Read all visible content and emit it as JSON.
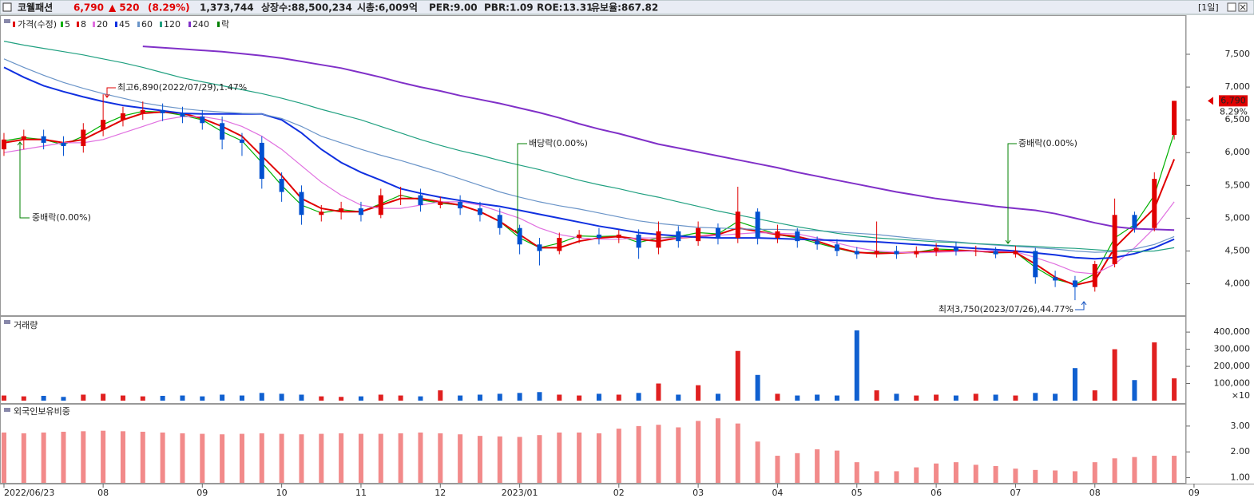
{
  "header": {
    "name": "코웰패션",
    "price": "6,790",
    "change": "▲ 520",
    "change_pct": "(8.29%)",
    "volume": "1,373,744",
    "listed": "상장수:88,500,234",
    "cap": "시총:6,009억",
    "per": "PER:9.00",
    "pbr": "PBR:1.09",
    "roe": "ROE:13.31",
    "reserve": "유보율:867.82",
    "period": "[1일]",
    "pct_marker": "8.29%"
  },
  "chart_data": [
    {
      "type": "candlestick",
      "name": "가격(수정)",
      "up_color": "#e00000",
      "down_color": "#0050d0",
      "x": [
        0,
        1,
        2,
        3,
        4,
        5,
        6,
        7,
        8,
        9,
        10,
        11,
        12,
        13,
        14,
        15,
        16,
        17,
        18,
        19,
        20,
        21,
        22,
        23,
        24,
        25,
        26,
        27,
        28,
        29,
        30,
        31,
        32,
        33,
        34,
        35,
        36,
        37,
        38,
        39,
        40,
        41,
        42,
        43,
        44,
        45,
        46,
        47,
        48,
        49,
        50,
        51,
        52,
        53,
        54,
        55,
        56,
        57,
        58,
        59
      ],
      "xlim": [
        -0.2,
        59.6
      ],
      "xticks": [
        {
          "value": 0,
          "label": "2022/06/23"
        },
        {
          "value": 5,
          "label": "08"
        },
        {
          "value": 10,
          "label": "09"
        },
        {
          "value": 14,
          "label": "10"
        },
        {
          "value": 18,
          "label": "11"
        },
        {
          "value": 22,
          "label": "12"
        },
        {
          "value": 26,
          "label": "2023/01"
        },
        {
          "value": 31,
          "label": "02"
        },
        {
          "value": 35,
          "label": "03"
        },
        {
          "value": 39,
          "label": "04"
        },
        {
          "value": 43,
          "label": "05"
        },
        {
          "value": 47,
          "label": "06"
        },
        {
          "value": 51,
          "label": "07"
        },
        {
          "value": 55,
          "label": "08"
        },
        {
          "value": 60,
          "label": "09"
        }
      ],
      "open": [
        6050,
        6200,
        6250,
        6150,
        6100,
        6350,
        6500,
        6600,
        6650,
        6600,
        6550,
        6450,
        6200,
        6150,
        5600,
        5400,
        5050,
        5100,
        5150,
        5050,
        5350,
        5350,
        5200,
        5250,
        5150,
        5050,
        4850,
        4600,
        4500,
        4700,
        4750,
        4700,
        4750,
        4550,
        4800,
        4650,
        4850,
        4700,
        5100,
        4700,
        4800,
        4650,
        4600,
        4500,
        4450,
        4500,
        4450,
        4500,
        4550,
        4500,
        4500,
        4450,
        4500,
        4100,
        4050,
        3950,
        4300,
        5050,
        4850,
        6270
      ],
      "high": [
        6300,
        6350,
        6350,
        6250,
        6450,
        6890,
        6700,
        6780,
        6750,
        6700,
        6650,
        6550,
        6300,
        6250,
        5700,
        5500,
        5200,
        5250,
        5250,
        5450,
        5480,
        5450,
        5330,
        5350,
        5250,
        5150,
        4900,
        4700,
        4780,
        4820,
        4850,
        4820,
        4830,
        4950,
        4880,
        4950,
        4920,
        5480,
        5150,
        4900,
        4850,
        4720,
        4680,
        4560,
        4950,
        4580,
        4570,
        4620,
        4640,
        4580,
        4560,
        4580,
        4550,
        4200,
        4120,
        4350,
        5300,
        5100,
        5700,
        6790
      ],
      "low": [
        5950,
        6050,
        6050,
        5950,
        6000,
        6250,
        6400,
        6500,
        6480,
        6450,
        6350,
        6050,
        5950,
        5450,
        5250,
        4900,
        4950,
        4980,
        4950,
        5000,
        5200,
        5100,
        5150,
        5050,
        4950,
        4750,
        4450,
        4280,
        4450,
        4620,
        4600,
        4620,
        4380,
        4450,
        4550,
        4580,
        4600,
        4620,
        4600,
        4620,
        4550,
        4520,
        4420,
        4380,
        4400,
        4380,
        4400,
        4420,
        4430,
        4420,
        4390,
        4400,
        4000,
        3950,
        3750,
        3880,
        4250,
        4780,
        4800,
        6200
      ],
      "close": [
        6200,
        6250,
        6150,
        6100,
        6350,
        6500,
        6600,
        6650,
        6600,
        6550,
        6450,
        6200,
        6150,
        5600,
        5400,
        5050,
        5100,
        5150,
        5050,
        5350,
        5350,
        5200,
        5250,
        5150,
        5050,
        4850,
        4600,
        4500,
        4700,
        4750,
        4700,
        4750,
        4550,
        4800,
        4650,
        4850,
        4700,
        5100,
        4700,
        4800,
        4650,
        4600,
        4500,
        4450,
        4500,
        4450,
        4500,
        4550,
        4500,
        4500,
        4450,
        4500,
        4100,
        4050,
        3950,
        4300,
        5050,
        4850,
        5600,
        6790
      ],
      "series": [
        {
          "name": "5",
          "color": "#00b000",
          "values": [
            6180,
            6230,
            6200,
            6120,
            6250,
            6430,
            6560,
            6630,
            6620,
            6570,
            6500,
            6320,
            6180,
            5850,
            5500,
            5200,
            5080,
            5130,
            5100,
            5220,
            5350,
            5280,
            5230,
            5200,
            5100,
            4950,
            4700,
            4550,
            4620,
            4730,
            4720,
            4730,
            4630,
            4700,
            4720,
            4780,
            4760,
            4950,
            4850,
            4750,
            4700,
            4620,
            4540,
            4470,
            4480,
            4470,
            4480,
            4530,
            4520,
            4500,
            4470,
            4480,
            4250,
            4070,
            3990,
            4150,
            4700,
            4900,
            5350,
            6300
          ]
        },
        {
          "name": "8",
          "color": "#e00000",
          "values": [
            6150,
            6200,
            6200,
            6150,
            6200,
            6350,
            6500,
            6600,
            6620,
            6600,
            6520,
            6400,
            6250,
            5950,
            5650,
            5300,
            5150,
            5100,
            5100,
            5200,
            5300,
            5300,
            5250,
            5200,
            5100,
            4950,
            4750,
            4550,
            4550,
            4650,
            4700,
            4720,
            4680,
            4650,
            4700,
            4720,
            4750,
            4850,
            4800,
            4750,
            4720,
            4650,
            4550,
            4480,
            4460,
            4470,
            4480,
            4500,
            4510,
            4500,
            4480,
            4480,
            4300,
            4100,
            3980,
            4050,
            4550,
            4850,
            5150,
            5900
          ]
        },
        {
          "name": "20",
          "color": "#e070e0",
          "values": [
            6000,
            6050,
            6100,
            6150,
            6150,
            6200,
            6300,
            6400,
            6500,
            6550,
            6550,
            6500,
            6400,
            6250,
            6050,
            5800,
            5550,
            5350,
            5200,
            5150,
            5150,
            5200,
            5250,
            5250,
            5200,
            5100,
            5000,
            4850,
            4750,
            4700,
            4680,
            4680,
            4700,
            4700,
            4700,
            4720,
            4740,
            4760,
            4780,
            4770,
            4760,
            4700,
            4620,
            4550,
            4500,
            4480,
            4470,
            4480,
            4490,
            4500,
            4500,
            4490,
            4400,
            4300,
            4180,
            4150,
            4300,
            4550,
            4850,
            5250
          ]
        },
        {
          "name": "45",
          "color": "#1030e0",
          "values": [
            7300,
            7150,
            7020,
            6930,
            6850,
            6780,
            6720,
            6680,
            6640,
            6600,
            6590,
            6590,
            6590,
            6590,
            6500,
            6300,
            6050,
            5850,
            5700,
            5580,
            5450,
            5380,
            5320,
            5270,
            5220,
            5180,
            5120,
            5060,
            5000,
            4940,
            4880,
            4830,
            4780,
            4750,
            4730,
            4710,
            4700,
            4700,
            4700,
            4690,
            4680,
            4670,
            4660,
            4650,
            4640,
            4620,
            4600,
            4580,
            4560,
            4540,
            4520,
            4500,
            4470,
            4440,
            4400,
            4380,
            4400,
            4460,
            4550,
            4680
          ]
        },
        {
          "name": "60",
          "color": "#6a94c8",
          "values": [
            7430,
            7300,
            7180,
            7070,
            6980,
            6900,
            6830,
            6760,
            6710,
            6670,
            6640,
            6620,
            6600,
            6590,
            6520,
            6400,
            6250,
            6150,
            6050,
            5960,
            5880,
            5790,
            5700,
            5600,
            5500,
            5400,
            5320,
            5250,
            5190,
            5140,
            5080,
            5020,
            4960,
            4920,
            4890,
            4860,
            4850,
            4840,
            4830,
            4830,
            4820,
            4810,
            4790,
            4770,
            4750,
            4720,
            4690,
            4660,
            4640,
            4610,
            4590,
            4570,
            4550,
            4530,
            4500,
            4480,
            4490,
            4530,
            4600,
            4720
          ]
        },
        {
          "name": "120",
          "color": "#20a080",
          "values": [
            7700,
            7640,
            7590,
            7540,
            7490,
            7430,
            7370,
            7300,
            7220,
            7140,
            7080,
            7020,
            6960,
            6900,
            6830,
            6750,
            6660,
            6580,
            6500,
            6400,
            6300,
            6200,
            6110,
            6030,
            5960,
            5880,
            5810,
            5740,
            5660,
            5580,
            5510,
            5450,
            5380,
            5320,
            5250,
            5180,
            5110,
            5050,
            4990,
            4930,
            4870,
            4820,
            4770,
            4730,
            4700,
            4680,
            4660,
            4640,
            4630,
            4610,
            4600,
            4580,
            4570,
            4550,
            4540,
            4520,
            4500,
            4490,
            4500,
            4550
          ]
        },
        {
          "name": "240",
          "color": "#8030c8",
          "values": [
            null,
            null,
            null,
            null,
            null,
            null,
            null,
            7620,
            7600,
            7580,
            7560,
            7540,
            7510,
            7480,
            7440,
            7390,
            7340,
            7290,
            7220,
            7150,
            7070,
            7000,
            6940,
            6870,
            6810,
            6750,
            6680,
            6610,
            6530,
            6440,
            6360,
            6290,
            6210,
            6130,
            6070,
            6010,
            5950,
            5890,
            5830,
            5770,
            5700,
            5640,
            5580,
            5520,
            5460,
            5400,
            5350,
            5300,
            5260,
            5220,
            5180,
            5150,
            5120,
            5070,
            5000,
            4930,
            4870,
            4840,
            4830,
            4820
          ]
        }
      ],
      "event_legend": {
        "name": "락",
        "color": "#008000"
      },
      "annotations": [
        "최고6,890(2022/07/29),1.47%",
        "중배락(0.00%)",
        "배당락(0.00%)",
        "중배락(0.00%)",
        "최저3,750(2023/07/26),44.77%"
      ],
      "ylim": [
        3520,
        8060
      ],
      "yticks": [
        {
          "value": 4000,
          "label": "4,000"
        },
        {
          "value": 4500,
          "label": "4,500"
        },
        {
          "value": 5000,
          "label": "5,000"
        },
        {
          "value": 5500,
          "label": "5,500"
        },
        {
          "value": 6000,
          "label": "6,000"
        },
        {
          "value": 6500,
          "label": "6,500"
        },
        {
          "value": 7000,
          "label": "7,000"
        },
        {
          "value": 7500,
          "label": "7,500"
        }
      ],
      "grid": false
    },
    {
      "type": "bar",
      "title": "거래량",
      "up_color": "#e02020",
      "down_color": "#1060d0",
      "unit_label": "×10",
      "values": [
        30000,
        25000,
        28000,
        22000,
        35000,
        40000,
        30000,
        25000,
        28000,
        30000,
        25000,
        35000,
        30000,
        45000,
        40000,
        35000,
        25000,
        22000,
        25000,
        35000,
        30000,
        25000,
        60000,
        30000,
        35000,
        40000,
        45000,
        50000,
        35000,
        30000,
        40000,
        35000,
        45000,
        100000,
        35000,
        90000,
        40000,
        290000,
        150000,
        40000,
        30000,
        35000,
        30000,
        410000,
        60000,
        40000,
        30000,
        35000,
        30000,
        40000,
        35000,
        30000,
        45000,
        40000,
        190000,
        60000,
        300000,
        120000,
        340000,
        130000
      ],
      "ylim": [
        0,
        475000
      ],
      "yticks": [
        {
          "value": 100000,
          "label": "100,000"
        },
        {
          "value": 200000,
          "label": "200,000"
        },
        {
          "value": 300000,
          "label": "300,000"
        },
        {
          "value": 400000,
          "label": "400,000"
        }
      ]
    },
    {
      "type": "bar",
      "title": "외국인보유비중",
      "color": "#f28a8a",
      "values": [
        2.75,
        2.72,
        2.75,
        2.78,
        2.8,
        2.82,
        2.8,
        2.78,
        2.75,
        2.72,
        2.7,
        2.68,
        2.7,
        2.72,
        2.7,
        2.68,
        2.7,
        2.72,
        2.7,
        2.7,
        2.72,
        2.75,
        2.72,
        2.68,
        2.62,
        2.6,
        2.58,
        2.65,
        2.75,
        2.75,
        2.72,
        2.9,
        3.0,
        3.05,
        2.95,
        3.2,
        3.3,
        3.1,
        2.4,
        1.85,
        1.95,
        2.1,
        2.05,
        1.6,
        1.25,
        1.25,
        1.4,
        1.55,
        1.6,
        1.5,
        1.45,
        1.35,
        1.3,
        1.28,
        1.25,
        1.6,
        1.75,
        1.8,
        1.85,
        1.85
      ],
      "ylim": [
        0.8,
        3.8
      ],
      "yticks": [
        {
          "value": 1,
          "label": "1.00"
        },
        {
          "value": 2,
          "label": "2.00"
        },
        {
          "value": 3,
          "label": "3.00"
        }
      ]
    }
  ]
}
